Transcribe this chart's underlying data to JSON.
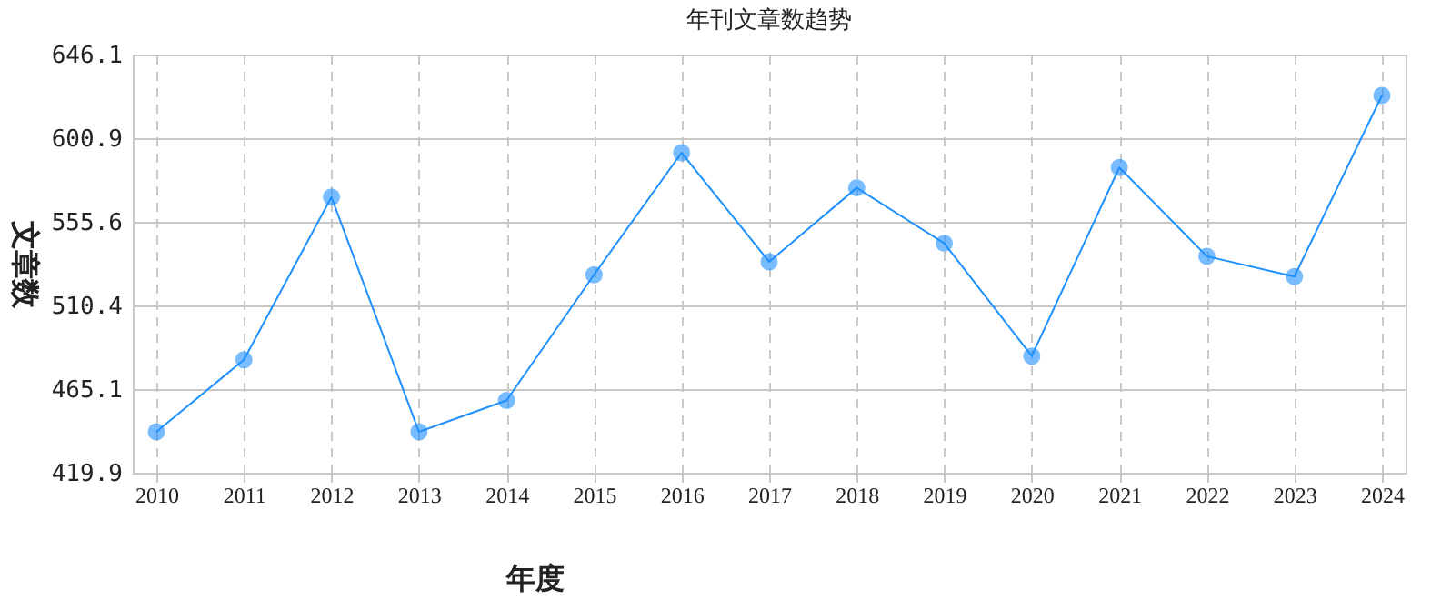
{
  "chart_data": {
    "type": "line",
    "title": "年刊文章数趋势",
    "xlabel": "年度",
    "ylabel": "文章数",
    "categories": [
      "2010",
      "2011",
      "2012",
      "2013",
      "2014",
      "2015",
      "2016",
      "2017",
      "2018",
      "2019",
      "2020",
      "2021",
      "2022",
      "2023",
      "2024"
    ],
    "series": [
      {
        "color": "#1e90ff",
        "values": [
          442,
          481,
          569,
          442,
          459,
          527,
          593,
          534,
          574,
          544,
          483,
          585,
          537,
          526,
          624
        ]
      }
    ],
    "ylim": [
      419.9,
      646.1
    ],
    "yticks": [
      419.9,
      465.1,
      510.4,
      555.6,
      600.9,
      646.1
    ],
    "grid": true,
    "marker": "circle",
    "line_style": "solid",
    "legend": false
  }
}
